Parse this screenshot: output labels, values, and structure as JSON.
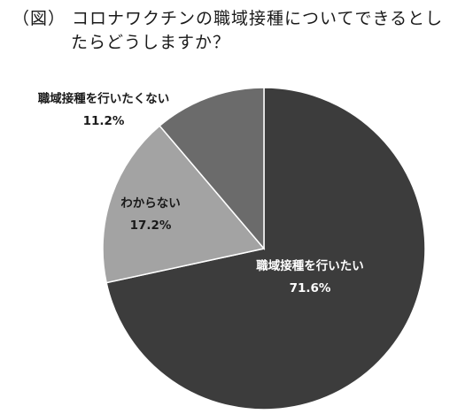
{
  "chart_data": {
    "type": "pie",
    "title_line1": "（図） コロナワクチンの職域接種についてできるとし",
    "title_line2": "たらどうしますか？",
    "categories": [
      "職域接種を行いたい",
      "わからない",
      "職域接種を行いたくない"
    ],
    "values": [
      71.6,
      17.2,
      11.2
    ],
    "value_labels": [
      "71.6%",
      "17.2%",
      "11.2%"
    ],
    "colors": [
      "#3c3c3c",
      "#a3a3a3",
      "#6b6b6b"
    ],
    "label_colors": [
      "#ffffff",
      "#1a1a1a",
      "#1a1a1a"
    ],
    "slice_border": "#ffffff",
    "legend": "none"
  }
}
